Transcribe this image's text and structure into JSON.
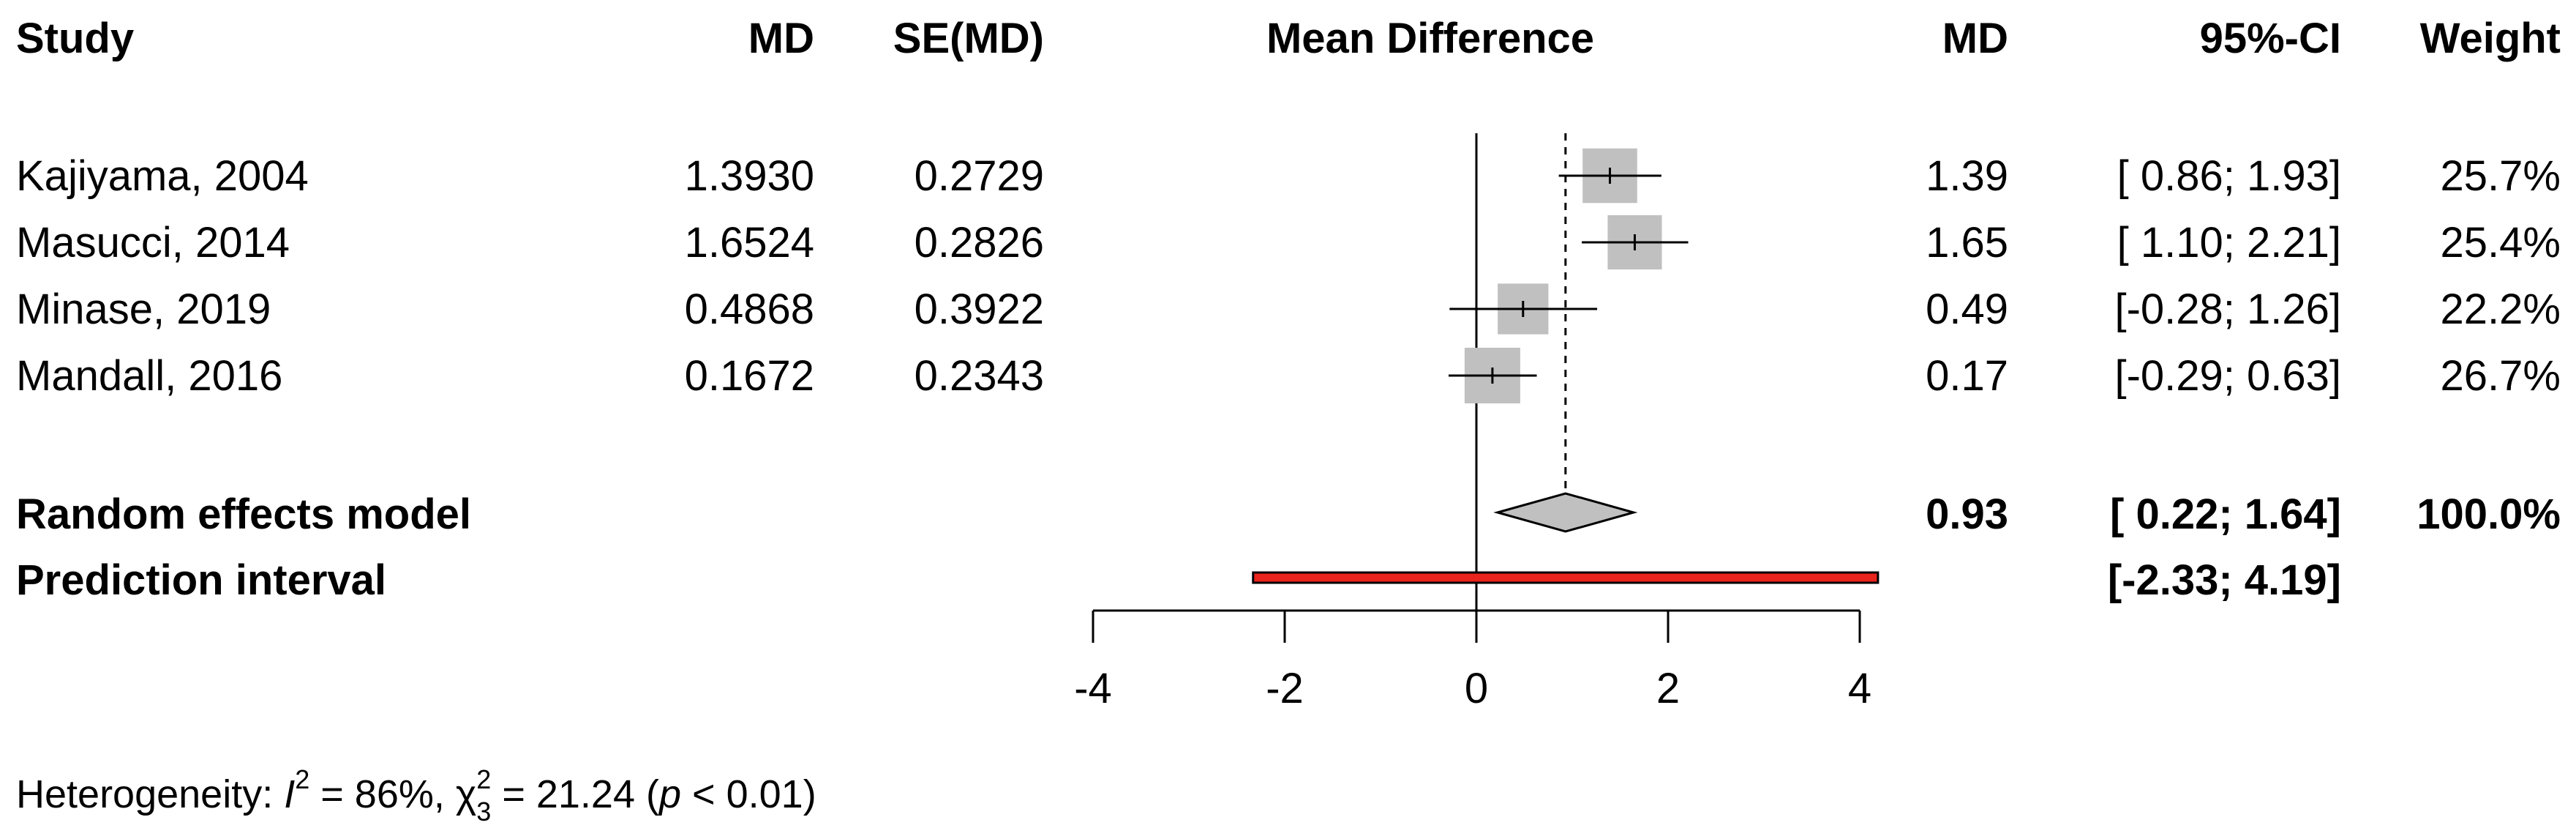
{
  "chart_data": {
    "type": "forest",
    "title": "Mean Difference",
    "headers": {
      "study": "Study",
      "md": "MD",
      "se": "SE(MD)",
      "plot": "Mean Difference",
      "md_right": "MD",
      "ci": "95%-CI",
      "weight": "Weight"
    },
    "studies": [
      {
        "label": "Kajiyama, 2004",
        "md": 1.393,
        "md_text": "1.3930",
        "se_text": "0.2729",
        "lower": 0.86,
        "upper": 1.93,
        "md_display": "1.39",
        "ci_text": "[ 0.86; 1.93]",
        "weight": 25.7,
        "weight_text": "25.7%"
      },
      {
        "label": "Masucci, 2014",
        "md": 1.6524,
        "md_text": "1.6524",
        "se_text": "0.2826",
        "lower": 1.1,
        "upper": 2.21,
        "md_display": "1.65",
        "ci_text": "[ 1.10; 2.21]",
        "weight": 25.4,
        "weight_text": "25.4%"
      },
      {
        "label": "Minase, 2019",
        "md": 0.4868,
        "md_text": "0.4868",
        "se_text": "0.3922",
        "lower": -0.28,
        "upper": 1.26,
        "md_display": "0.49",
        "ci_text": "[-0.28; 1.26]",
        "weight": 22.2,
        "weight_text": "22.2%"
      },
      {
        "label": "Mandall, 2016",
        "md": 0.1672,
        "md_text": "0.1672",
        "se_text": "0.2343",
        "lower": -0.29,
        "upper": 0.63,
        "md_display": "0.17",
        "ci_text": "[-0.29; 0.63]",
        "weight": 26.7,
        "weight_text": "26.7%"
      }
    ],
    "pooled": {
      "label": "Random effects model",
      "md": 0.93,
      "lower": 0.22,
      "upper": 1.64,
      "md_display": "0.93",
      "ci_text": "[ 0.22; 1.64]",
      "weight_text": "100.0%"
    },
    "prediction": {
      "label": "Prediction interval",
      "lower": -2.33,
      "upper": 4.19,
      "ci_text": "[-2.33; 4.19]"
    },
    "x_axis": {
      "range": [
        -4,
        4
      ],
      "ticks": [
        -4,
        -2,
        0,
        2,
        4
      ],
      "tick_labels": [
        "-4",
        "-2",
        "0",
        "2",
        "4"
      ]
    },
    "heterogeneity": {
      "prefix": "Heterogeneity: ",
      "i2_symbol": "I",
      "i2_exp": "2",
      "i2_value": " = 86%, ",
      "chi_symbol": "χ",
      "chi_exp": "2",
      "chi_sub": "3",
      "chi_value": " = 21.24 (",
      "p_symbol": "p",
      "p_value": " < 0.01)"
    },
    "colors": {
      "box": "#c0c0c0",
      "diamond": "#c0c0c0",
      "prediction": "#e8241c",
      "line": "#000000"
    }
  }
}
